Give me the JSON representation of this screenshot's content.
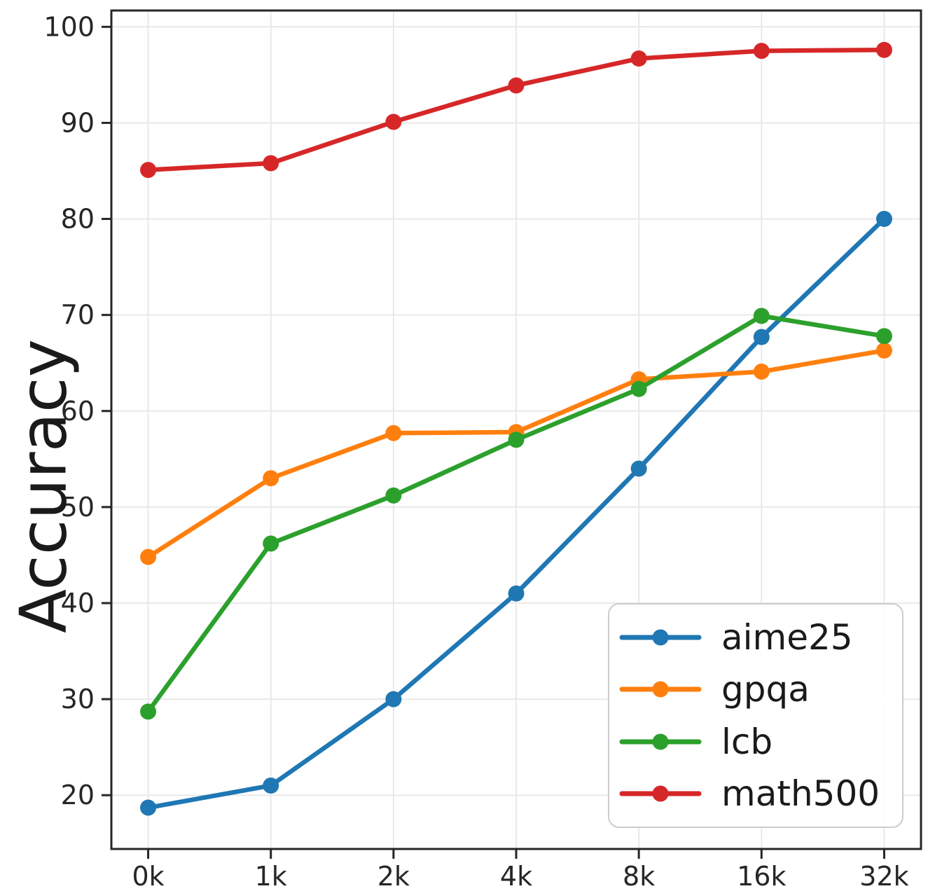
{
  "chart_data": {
    "type": "line",
    "title": "",
    "xlabel": "",
    "ylabel": "Accuracy",
    "categories": [
      "0k",
      "1k",
      "2k",
      "4k",
      "8k",
      "16k",
      "32k"
    ],
    "yticks": [
      20,
      30,
      40,
      50,
      60,
      70,
      80,
      90,
      100
    ],
    "ylim": [
      14.4,
      101.7
    ],
    "grid": true,
    "legend_position": "lower right",
    "axis_color": "#262626",
    "grid_color": "#e7e7e7",
    "series": [
      {
        "name": "aime25",
        "color": "#1f77b4",
        "values": [
          18.7,
          21.0,
          30.0,
          41.0,
          54.0,
          67.7,
          80.0
        ]
      },
      {
        "name": "gpqa",
        "color": "#ff7f0e",
        "values": [
          44.8,
          53.0,
          57.7,
          57.8,
          63.3,
          64.1,
          66.3
        ]
      },
      {
        "name": "lcb",
        "color": "#2ca02c",
        "values": [
          28.7,
          46.2,
          51.2,
          57.0,
          62.3,
          69.9,
          67.8
        ]
      },
      {
        "name": "math500",
        "color": "#d62728",
        "values": [
          85.1,
          85.8,
          90.1,
          93.9,
          96.7,
          97.5,
          97.6
        ]
      }
    ]
  }
}
